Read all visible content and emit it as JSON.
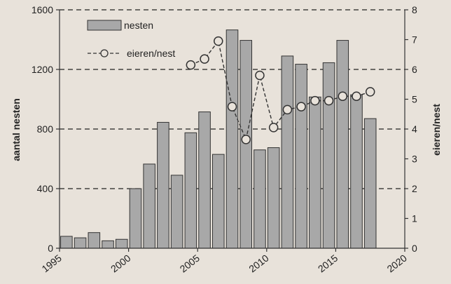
{
  "chart_data": {
    "type": "bar",
    "x_range": [
      1995,
      2020
    ],
    "x_ticks": [
      "1995",
      "2000",
      "2005",
      "2010",
      "2015",
      "2020"
    ],
    "left_axis": {
      "label": "aantal nesten",
      "range": [
        0,
        1600
      ],
      "ticks": [
        "0",
        "400",
        "800",
        "1200",
        "1600"
      ]
    },
    "right_axis": {
      "label": "eieren/nest",
      "range": [
        0,
        8
      ],
      "ticks": [
        "0",
        "1",
        "2",
        "3",
        "4",
        "5",
        "6",
        "7",
        "8"
      ]
    },
    "gridlines": "dashed horizontal at 400, 800, 1200, 1600",
    "legend_position": "top-left",
    "series": [
      {
        "name": "nesten",
        "type": "bar",
        "axis": "left",
        "color": "#a8a8a8",
        "x": [
          1995,
          1996,
          1997,
          1998,
          1999,
          2000,
          2001,
          2002,
          2003,
          2004,
          2005,
          2006,
          2007,
          2008,
          2009,
          2010,
          2011,
          2012,
          2013,
          2014,
          2015,
          2016,
          2017
        ],
        "values": [
          80,
          70,
          105,
          50,
          60,
          400,
          565,
          845,
          490,
          775,
          915,
          630,
          1465,
          1395,
          660,
          675,
          1290,
          1235,
          1015,
          1245,
          1395,
          1030,
          870
        ]
      },
      {
        "name": "eieren/nest",
        "type": "line",
        "axis": "right",
        "style": "dashed with open circle markers",
        "x": [
          2004,
          2005,
          2006,
          2007,
          2008,
          2009,
          2010,
          2011,
          2012,
          2013,
          2014,
          2015,
          2016,
          2017
        ],
        "values": [
          6.15,
          6.35,
          6.95,
          4.75,
          3.65,
          5.8,
          4.05,
          4.65,
          4.75,
          4.95,
          4.95,
          5.1,
          5.1,
          5.25
        ]
      }
    ]
  }
}
